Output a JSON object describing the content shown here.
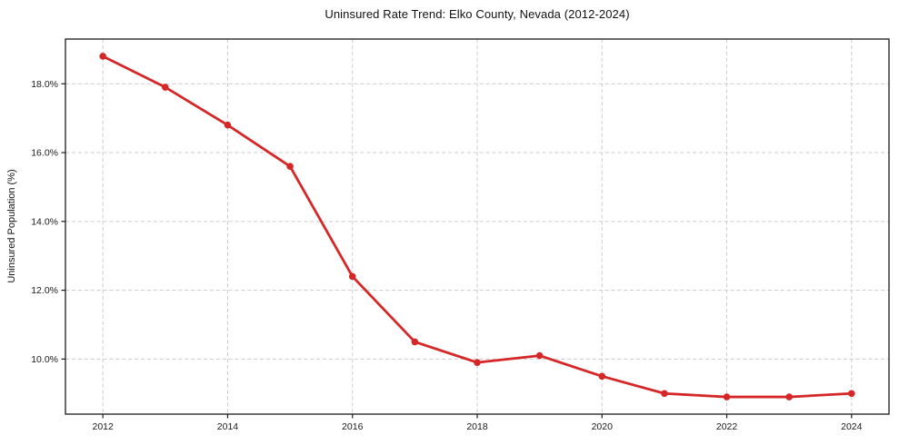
{
  "figure": {
    "title": "Uninsured Rate Trend: Elko County, Nevada (2012-2024)"
  },
  "chart_data": {
    "type": "line",
    "title": "Uninsured Rate Trend: Elko County, Nevada (2012-2024)",
    "xlabel": "",
    "ylabel": "Uninsured Population (%)",
    "x": [
      2012,
      2013,
      2014,
      2015,
      2016,
      2017,
      2018,
      2019,
      2020,
      2021,
      2022,
      2023,
      2024
    ],
    "values": [
      18.8,
      17.9,
      16.8,
      15.6,
      12.4,
      10.5,
      9.9,
      10.1,
      9.5,
      9.0,
      8.9,
      8.9,
      9.0
    ],
    "x_ticks": [
      2012,
      2014,
      2016,
      2018,
      2020,
      2022,
      2024
    ],
    "x_tick_labels": [
      "2012",
      "2014",
      "2016",
      "2018",
      "2020",
      "2022",
      "2024"
    ],
    "y_ticks": [
      10,
      12,
      14,
      16,
      18
    ],
    "y_tick_labels": [
      "10.0%",
      "12.0%",
      "14.0%",
      "16.0%",
      "18.0%"
    ],
    "xlim": [
      2011.4,
      2024.6
    ],
    "ylim": [
      8.4,
      19.3
    ],
    "grid": true,
    "legend_position": "none",
    "colors": {
      "line": "#d62728",
      "marker": "#d62728",
      "grid": "#cccccc",
      "spine": "#1a1a1a",
      "tick_label": "#1a1a1a",
      "background": "#ffffff"
    }
  }
}
